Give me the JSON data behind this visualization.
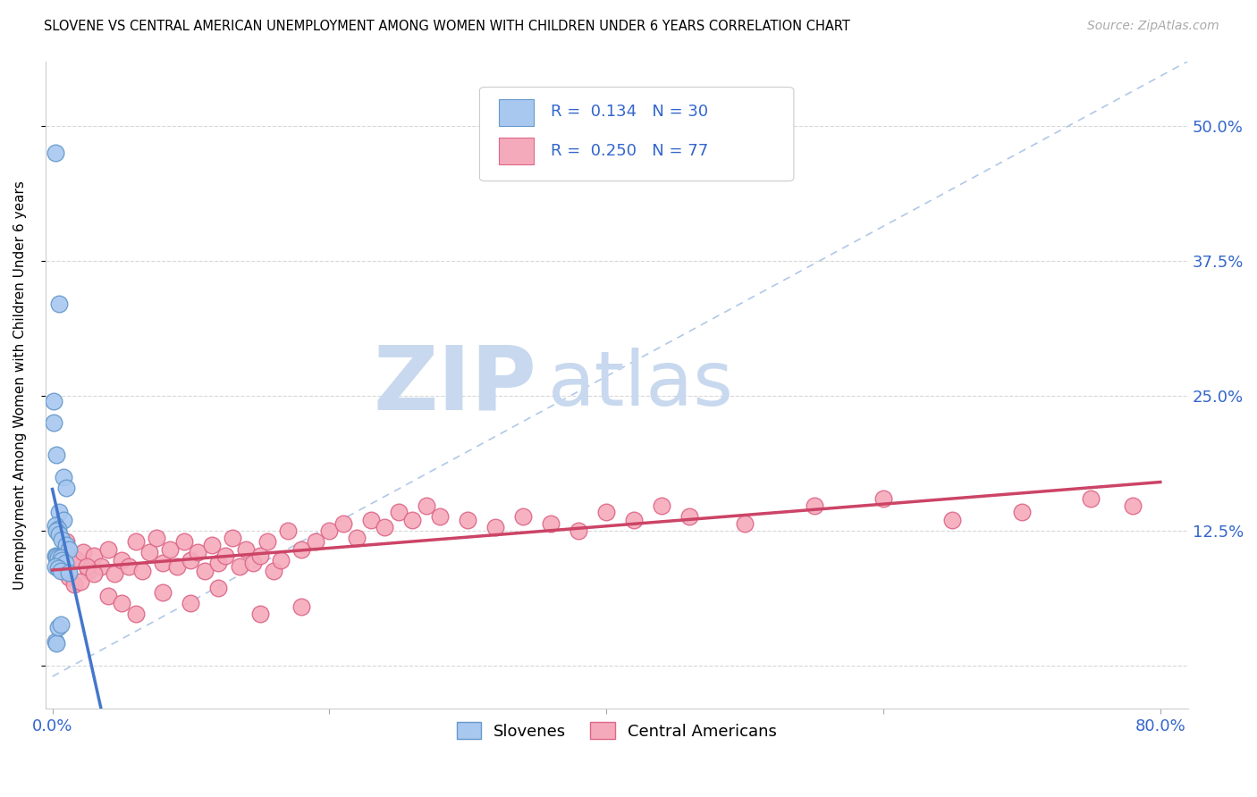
{
  "title": "SLOVENE VS CENTRAL AMERICAN UNEMPLOYMENT AMONG WOMEN WITH CHILDREN UNDER 6 YEARS CORRELATION CHART",
  "source": "Source: ZipAtlas.com",
  "ylabel": "Unemployment Among Women with Children Under 6 years",
  "xlim": [
    -0.005,
    0.82
  ],
  "ylim": [
    -0.04,
    0.56
  ],
  "xtick_positions": [
    0.0,
    0.2,
    0.4,
    0.6,
    0.8
  ],
  "xtick_labels": [
    "0.0%",
    "",
    "",
    "",
    "80.0%"
  ],
  "ytick_positions": [
    0.0,
    0.125,
    0.25,
    0.375,
    0.5
  ],
  "ytick_labels": [
    "",
    "12.5%",
    "25.0%",
    "37.5%",
    "50.0%"
  ],
  "slovene_color_face": "#a8c8f0",
  "slovene_color_edge": "#6699cc",
  "central_color_face": "#f5aabb",
  "central_color_edge": "#dd6688",
  "slovene_R": "0.134",
  "slovene_N": "30",
  "central_R": "0.250",
  "central_N": "77",
  "trend_blue": "#4477cc",
  "trend_pink": "#cc4466",
  "ref_color": "#b0c8e8",
  "grid_color": "#d8d8d8",
  "watermark_zip_color": "#c8d8ee",
  "watermark_atlas_color": "#c8d8ee",
  "slovene_x": [
    0.002,
    0.005,
    0.001,
    0.001,
    0.003,
    0.008,
    0.01,
    0.005,
    0.008,
    0.002,
    0.004,
    0.003,
    0.005,
    0.007,
    0.01,
    0.012,
    0.002,
    0.003,
    0.004,
    0.006,
    0.007,
    0.009,
    0.002,
    0.004,
    0.006,
    0.012,
    0.002,
    0.003,
    0.004,
    0.006
  ],
  "slovene_y": [
    0.475,
    0.335,
    0.245,
    0.225,
    0.195,
    0.175,
    0.165,
    0.142,
    0.135,
    0.13,
    0.127,
    0.125,
    0.122,
    0.117,
    0.112,
    0.108,
    0.102,
    0.101,
    0.1,
    0.1,
    0.098,
    0.095,
    0.092,
    0.09,
    0.088,
    0.086,
    0.022,
    0.021,
    0.036,
    0.038
  ],
  "central_x": [
    0.004,
    0.007,
    0.01,
    0.015,
    0.018,
    0.022,
    0.026,
    0.03,
    0.035,
    0.04,
    0.045,
    0.05,
    0.055,
    0.06,
    0.065,
    0.07,
    0.075,
    0.08,
    0.085,
    0.09,
    0.095,
    0.1,
    0.105,
    0.11,
    0.115,
    0.12,
    0.125,
    0.13,
    0.135,
    0.14,
    0.145,
    0.15,
    0.155,
    0.16,
    0.165,
    0.17,
    0.18,
    0.19,
    0.2,
    0.21,
    0.22,
    0.23,
    0.24,
    0.25,
    0.26,
    0.27,
    0.28,
    0.3,
    0.32,
    0.34,
    0.36,
    0.38,
    0.4,
    0.42,
    0.44,
    0.46,
    0.5,
    0.55,
    0.6,
    0.65,
    0.7,
    0.75,
    0.78,
    0.008,
    0.012,
    0.016,
    0.02,
    0.025,
    0.03,
    0.04,
    0.05,
    0.06,
    0.08,
    0.1,
    0.12,
    0.15,
    0.18
  ],
  "central_y": [
    0.1,
    0.093,
    0.115,
    0.1,
    0.098,
    0.105,
    0.088,
    0.102,
    0.092,
    0.108,
    0.085,
    0.098,
    0.092,
    0.115,
    0.088,
    0.105,
    0.118,
    0.095,
    0.108,
    0.092,
    0.115,
    0.098,
    0.105,
    0.088,
    0.112,
    0.095,
    0.102,
    0.118,
    0.092,
    0.108,
    0.095,
    0.102,
    0.115,
    0.088,
    0.098,
    0.125,
    0.108,
    0.115,
    0.125,
    0.132,
    0.118,
    0.135,
    0.128,
    0.142,
    0.135,
    0.148,
    0.138,
    0.135,
    0.128,
    0.138,
    0.132,
    0.125,
    0.142,
    0.135,
    0.148,
    0.138,
    0.132,
    0.148,
    0.155,
    0.135,
    0.142,
    0.155,
    0.148,
    0.088,
    0.082,
    0.075,
    0.078,
    0.092,
    0.085,
    0.065,
    0.058,
    0.048,
    0.068,
    0.058,
    0.072,
    0.048,
    0.055
  ]
}
